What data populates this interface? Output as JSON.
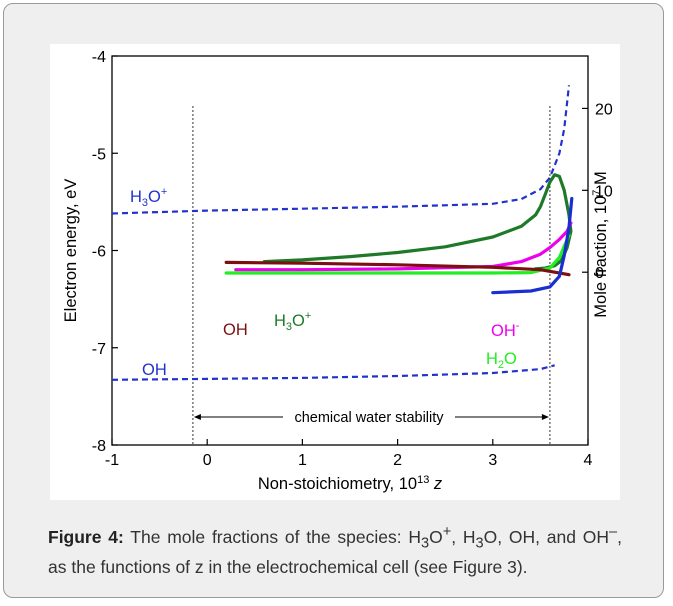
{
  "colors": {
    "blue_dash": "#2233cc",
    "blue": "#1a2fd0",
    "dark_green": "#1e7a28",
    "magenta": "#ee00ee",
    "light_green": "#22ee22",
    "maroon": "#7a1010",
    "card_bg": "#f0eff0",
    "caption_text": "#333333"
  },
  "chart_data": {
    "type": "line",
    "xlabel_text": "Non-stoichiometry, 10",
    "xlabel_sup": "13",
    "xlabel_var": "z",
    "ylabel_left": "Electron energy, eV",
    "ylabel_right_pre": "Mole fraction, 10",
    "ylabel_right_sup": "7",
    "ylabel_right_post": " M",
    "xlim": [
      -1,
      4
    ],
    "ylim_left": [
      -8,
      -4
    ],
    "ylim_right_visible": [
      -5,
      25
    ],
    "x_ticks": [
      "-1",
      "0",
      "1",
      "2",
      "3",
      "4"
    ],
    "y_ticks_left": [
      "-4",
      "-5",
      "-6",
      "-7",
      "-8"
    ],
    "y_ticks_right": [
      "20",
      "10",
      "0"
    ],
    "vlines": [
      -0.15,
      3.6
    ],
    "stability_label": "chemical water stability",
    "left_axis_series": [
      {
        "label_main": "H",
        "label_sub": "3",
        "label_mid": "O",
        "label_sup": "+",
        "color": "#2233cc",
        "dash": true,
        "x": [
          -1,
          0,
          1,
          2,
          3,
          3.3,
          3.5,
          3.6,
          3.7,
          3.75,
          3.8
        ],
        "y": [
          -5.62,
          -5.59,
          -5.57,
          -5.55,
          -5.52,
          -5.47,
          -5.37,
          -5.25,
          -5.0,
          -4.75,
          -4.3
        ]
      },
      {
        "label_main": "OH",
        "color": "#2233cc",
        "dash": true,
        "x": [
          -1,
          0,
          1,
          2,
          3,
          3.5,
          3.65
        ],
        "y": [
          -7.33,
          -7.32,
          -7.31,
          -7.29,
          -7.26,
          -7.22,
          -7.18
        ]
      }
    ],
    "right_axis_series": [
      {
        "label_main": "H",
        "label_sub": "3",
        "label_mid": "O",
        "label_sup": "+",
        "color": "#1e7a28",
        "x": [
          0.6,
          1.0,
          1.5,
          2.0,
          2.5,
          3.0,
          3.3,
          3.45,
          3.5,
          3.55,
          3.6,
          3.65,
          3.7,
          3.75,
          3.8,
          3.82,
          3.78,
          3.72,
          3.65,
          3.55,
          3.45
        ],
        "y": [
          1.3,
          1.5,
          1.9,
          2.4,
          3.1,
          4.3,
          5.6,
          7.0,
          8.0,
          9.5,
          11.0,
          11.9,
          11.7,
          10.0,
          7.0,
          5.0,
          3.0,
          1.4,
          0.8,
          0.5,
          0.4
        ]
      },
      {
        "label_main": "OH",
        "label_sup": "-",
        "color": "#ee00ee",
        "x": [
          0.3,
          1,
          2,
          3,
          3.3,
          3.5,
          3.6,
          3.7,
          3.78,
          3.82
        ],
        "y": [
          0.3,
          0.3,
          0.4,
          0.7,
          1.3,
          2.2,
          3.0,
          4.0,
          5.0,
          6.0
        ]
      },
      {
        "label_main": "H",
        "label_sub": "2",
        "label_mid": "O",
        "color": "#22ee22",
        "x": [
          0.2,
          1,
          2,
          3,
          3.4,
          3.6,
          3.7,
          3.8
        ],
        "y": [
          -0.1,
          -0.1,
          -0.1,
          -0.1,
          -0.05,
          0.5,
          1.8,
          4.5
        ]
      },
      {
        "label_main": "OH",
        "color": "#7a1010",
        "x": [
          0.2,
          1,
          2,
          3,
          3.5,
          3.8
        ],
        "y": [
          1.2,
          1.1,
          0.9,
          0.6,
          0.3,
          -0.3
        ]
      },
      {
        "color": "#1a2fd0",
        "x": [
          3.0,
          3.4,
          3.6,
          3.7,
          3.75,
          3.8,
          3.83
        ],
        "y": [
          -2.5,
          -2.3,
          -1.8,
          -0.5,
          2.0,
          5.5,
          9.0
        ]
      }
    ]
  },
  "caption": {
    "label": "Figure 4:",
    "t1": " The mole fractions of the species: H",
    "s1": "3",
    "t2": "O",
    "s2": "+",
    "t3": ", H",
    "s3": "3",
    "t4": "O, OH, and OH",
    "s4": "–",
    "t5": ", as the functions of z in the electrochemical cell (see Figure 3)."
  }
}
